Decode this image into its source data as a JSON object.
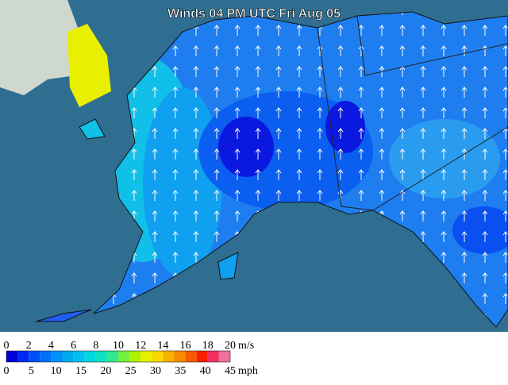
{
  "title": "Winds 04 PM UTC Fri Aug 05",
  "legend": {
    "colors": [
      "#0000d8",
      "#0028f0",
      "#0050f8",
      "#0070f8",
      "#0090f8",
      "#00a8f0",
      "#00c0f0",
      "#00d8e0",
      "#10e0c0",
      "#30e890",
      "#70f040",
      "#b0f000",
      "#e8f000",
      "#f8d800",
      "#f8b000",
      "#f88800",
      "#f85800",
      "#f82000",
      "#f03060",
      "#f070a0"
    ],
    "ms": {
      "unit": "m/s",
      "ticks": [
        0,
        2,
        4,
        6,
        8,
        10,
        12,
        14,
        16,
        18,
        20
      ]
    },
    "mph": {
      "unit": "mph",
      "ticks": [
        0,
        5,
        10,
        15,
        20,
        25,
        30,
        35,
        40,
        45
      ]
    }
  }
}
